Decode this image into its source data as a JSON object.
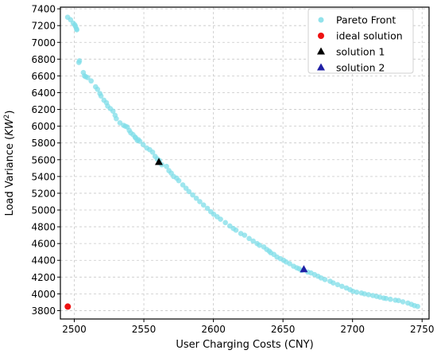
{
  "chart_data": {
    "type": "scatter",
    "xlabel": "User Charging Costs (CNY)",
    "ylabel_main": "Load Variance (",
    "ylabel_unit": "KW",
    "ylabel_sup": "2",
    "ylabel_end": ")",
    "xlim": [
      2490,
      2755
    ],
    "ylim": [
      3700,
      7420
    ],
    "xticks": [
      2500,
      2550,
      2600,
      2650,
      2700,
      2750
    ],
    "yticks": [
      3800,
      4000,
      4200,
      4400,
      4600,
      4800,
      5000,
      5200,
      5400,
      5600,
      5800,
      6000,
      6200,
      6400,
      6600,
      6800,
      7000,
      7200,
      7400
    ],
    "grid": true,
    "legend_position": "top-right",
    "colors": {
      "pareto": "#7fdde8",
      "ideal": "#ee1111",
      "solution1": "#000000",
      "solution2": "#1f1fa5"
    },
    "series": [
      {
        "name": "Pareto Front",
        "marker": "circle",
        "x": [
          2495.2,
          2497.3,
          2499.2,
          2500.3,
          2500.9,
          2501.6,
          2501.8,
          2503.7,
          2503.3,
          2506.5,
          2507.3,
          2508.2,
          2509.6,
          2512.1,
          2515.3,
          2516.7,
          2518.4,
          2519.2,
          2521.3,
          2523.1,
          2524.0,
          2525.9,
          2527.8,
          2529.3,
          2530.2,
          2532.8,
          2535.4,
          2536.7,
          2538.1,
          2539.5,
          2540.6,
          2542.2,
          2543.7,
          2544.1,
          2545.3,
          2546.0,
          2547.1,
          2549.5,
          2552.1,
          2554.2,
          2556.3,
          2558.1,
          2559.6,
          2561.2,
          2562.9,
          2566.3,
          2568.0,
          2569.7,
          2571.4,
          2573.6,
          2575.1,
          2578.0,
          2580.3,
          2582.4,
          2585.1,
          2587.7,
          2590.2,
          2592.9,
          2595.7,
          2598.1,
          2600.2,
          2602.7,
          2605.1,
          2608.6,
          2611.8,
          2614.3,
          2616.2,
          2619.7,
          2622.4,
          2625.7,
          2628.6,
          2631.4,
          2633.1,
          2636.2,
          2638.3,
          2640.1,
          2641.2,
          2643.5,
          2645.7,
          2648.1,
          2650.5,
          2652.3,
          2654.8,
          2657.6,
          2659.9,
          2661.6,
          2663.3,
          2667.8,
          2670.1,
          2672.7,
          2675.2,
          2677.4,
          2680.2,
          2683.9,
          2686.1,
          2689.3,
          2692.4,
          2695.6,
          2698.2,
          2700.3,
          2703.0,
          2706.4,
          2708.6,
          2711.5,
          2714.6,
          2717.3,
          2719.7,
          2722.4,
          2724.1,
          2727.2,
          2730.8,
          2733.1,
          2736.2,
          2739.8,
          2742.3,
          2744.5,
          2746.8
        ],
        "y": [
          7300,
          7270,
          7230,
          7210,
          7190,
          7160,
          7150,
          6780,
          6760,
          6640,
          6600,
          6590,
          6580,
          6540,
          6470,
          6440,
          6390,
          6360,
          6310,
          6280,
          6240,
          6210,
          6180,
          6130,
          6090,
          6040,
          6010,
          6000,
          5990,
          5950,
          5920,
          5900,
          5870,
          5860,
          5830,
          5840,
          5820,
          5780,
          5740,
          5720,
          5690,
          5640,
          5610,
          5590,
          5540,
          5520,
          5470,
          5440,
          5400,
          5380,
          5350,
          5300,
          5260,
          5220,
          5180,
          5140,
          5100,
          5060,
          5020,
          4980,
          4950,
          4920,
          4890,
          4850,
          4810,
          4780,
          4760,
          4720,
          4700,
          4660,
          4630,
          4600,
          4580,
          4560,
          4530,
          4510,
          4490,
          4470,
          4440,
          4420,
          4400,
          4380,
          4360,
          4330,
          4310,
          4300,
          4280,
          4260,
          4250,
          4230,
          4210,
          4190,
          4170,
          4150,
          4130,
          4110,
          4090,
          4070,
          4050,
          4030,
          4020,
          4010,
          4000,
          3990,
          3980,
          3970,
          3960,
          3950,
          3945,
          3935,
          3925,
          3920,
          3905,
          3890,
          3875,
          3860,
          3850
        ]
      },
      {
        "name": "ideal solution",
        "marker": "circle",
        "x": [
          2495.3
        ],
        "y": [
          3848
        ]
      },
      {
        "name": "solution 1",
        "marker": "triangle",
        "x": [
          2560.8
        ],
        "y": [
          5580
        ]
      },
      {
        "name": "solution 2",
        "marker": "triangle",
        "x": [
          2665.0
        ],
        "y": [
          4300
        ]
      }
    ]
  }
}
